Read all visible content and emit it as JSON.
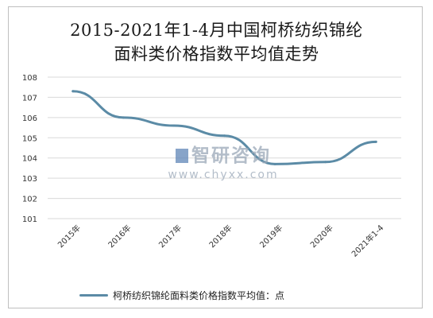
{
  "chart_data": {
    "type": "line",
    "title_line1": "2015-2021年1-4月中国柯桥纺织锦纶",
    "title_line2": "面料类价格指数平均值走势",
    "categories": [
      "2015年",
      "2016年",
      "2017年",
      "2018年",
      "2019年",
      "2020年",
      "2021年1-4"
    ],
    "series": [
      {
        "name": "柯桥纺织锦纶面料类价格指数平均值：点",
        "values": [
          107.3,
          106.0,
          105.6,
          105.1,
          103.7,
          103.8,
          104.8
        ],
        "color": "#5b8ba6"
      }
    ],
    "yticks": [
      101,
      102,
      103,
      104,
      105,
      106,
      107,
      108
    ],
    "ylim": [
      101,
      108
    ],
    "grid": true,
    "legend_position": "bottom"
  },
  "watermark": {
    "brand": "智研咨询",
    "url": "www.chyxx.com"
  }
}
